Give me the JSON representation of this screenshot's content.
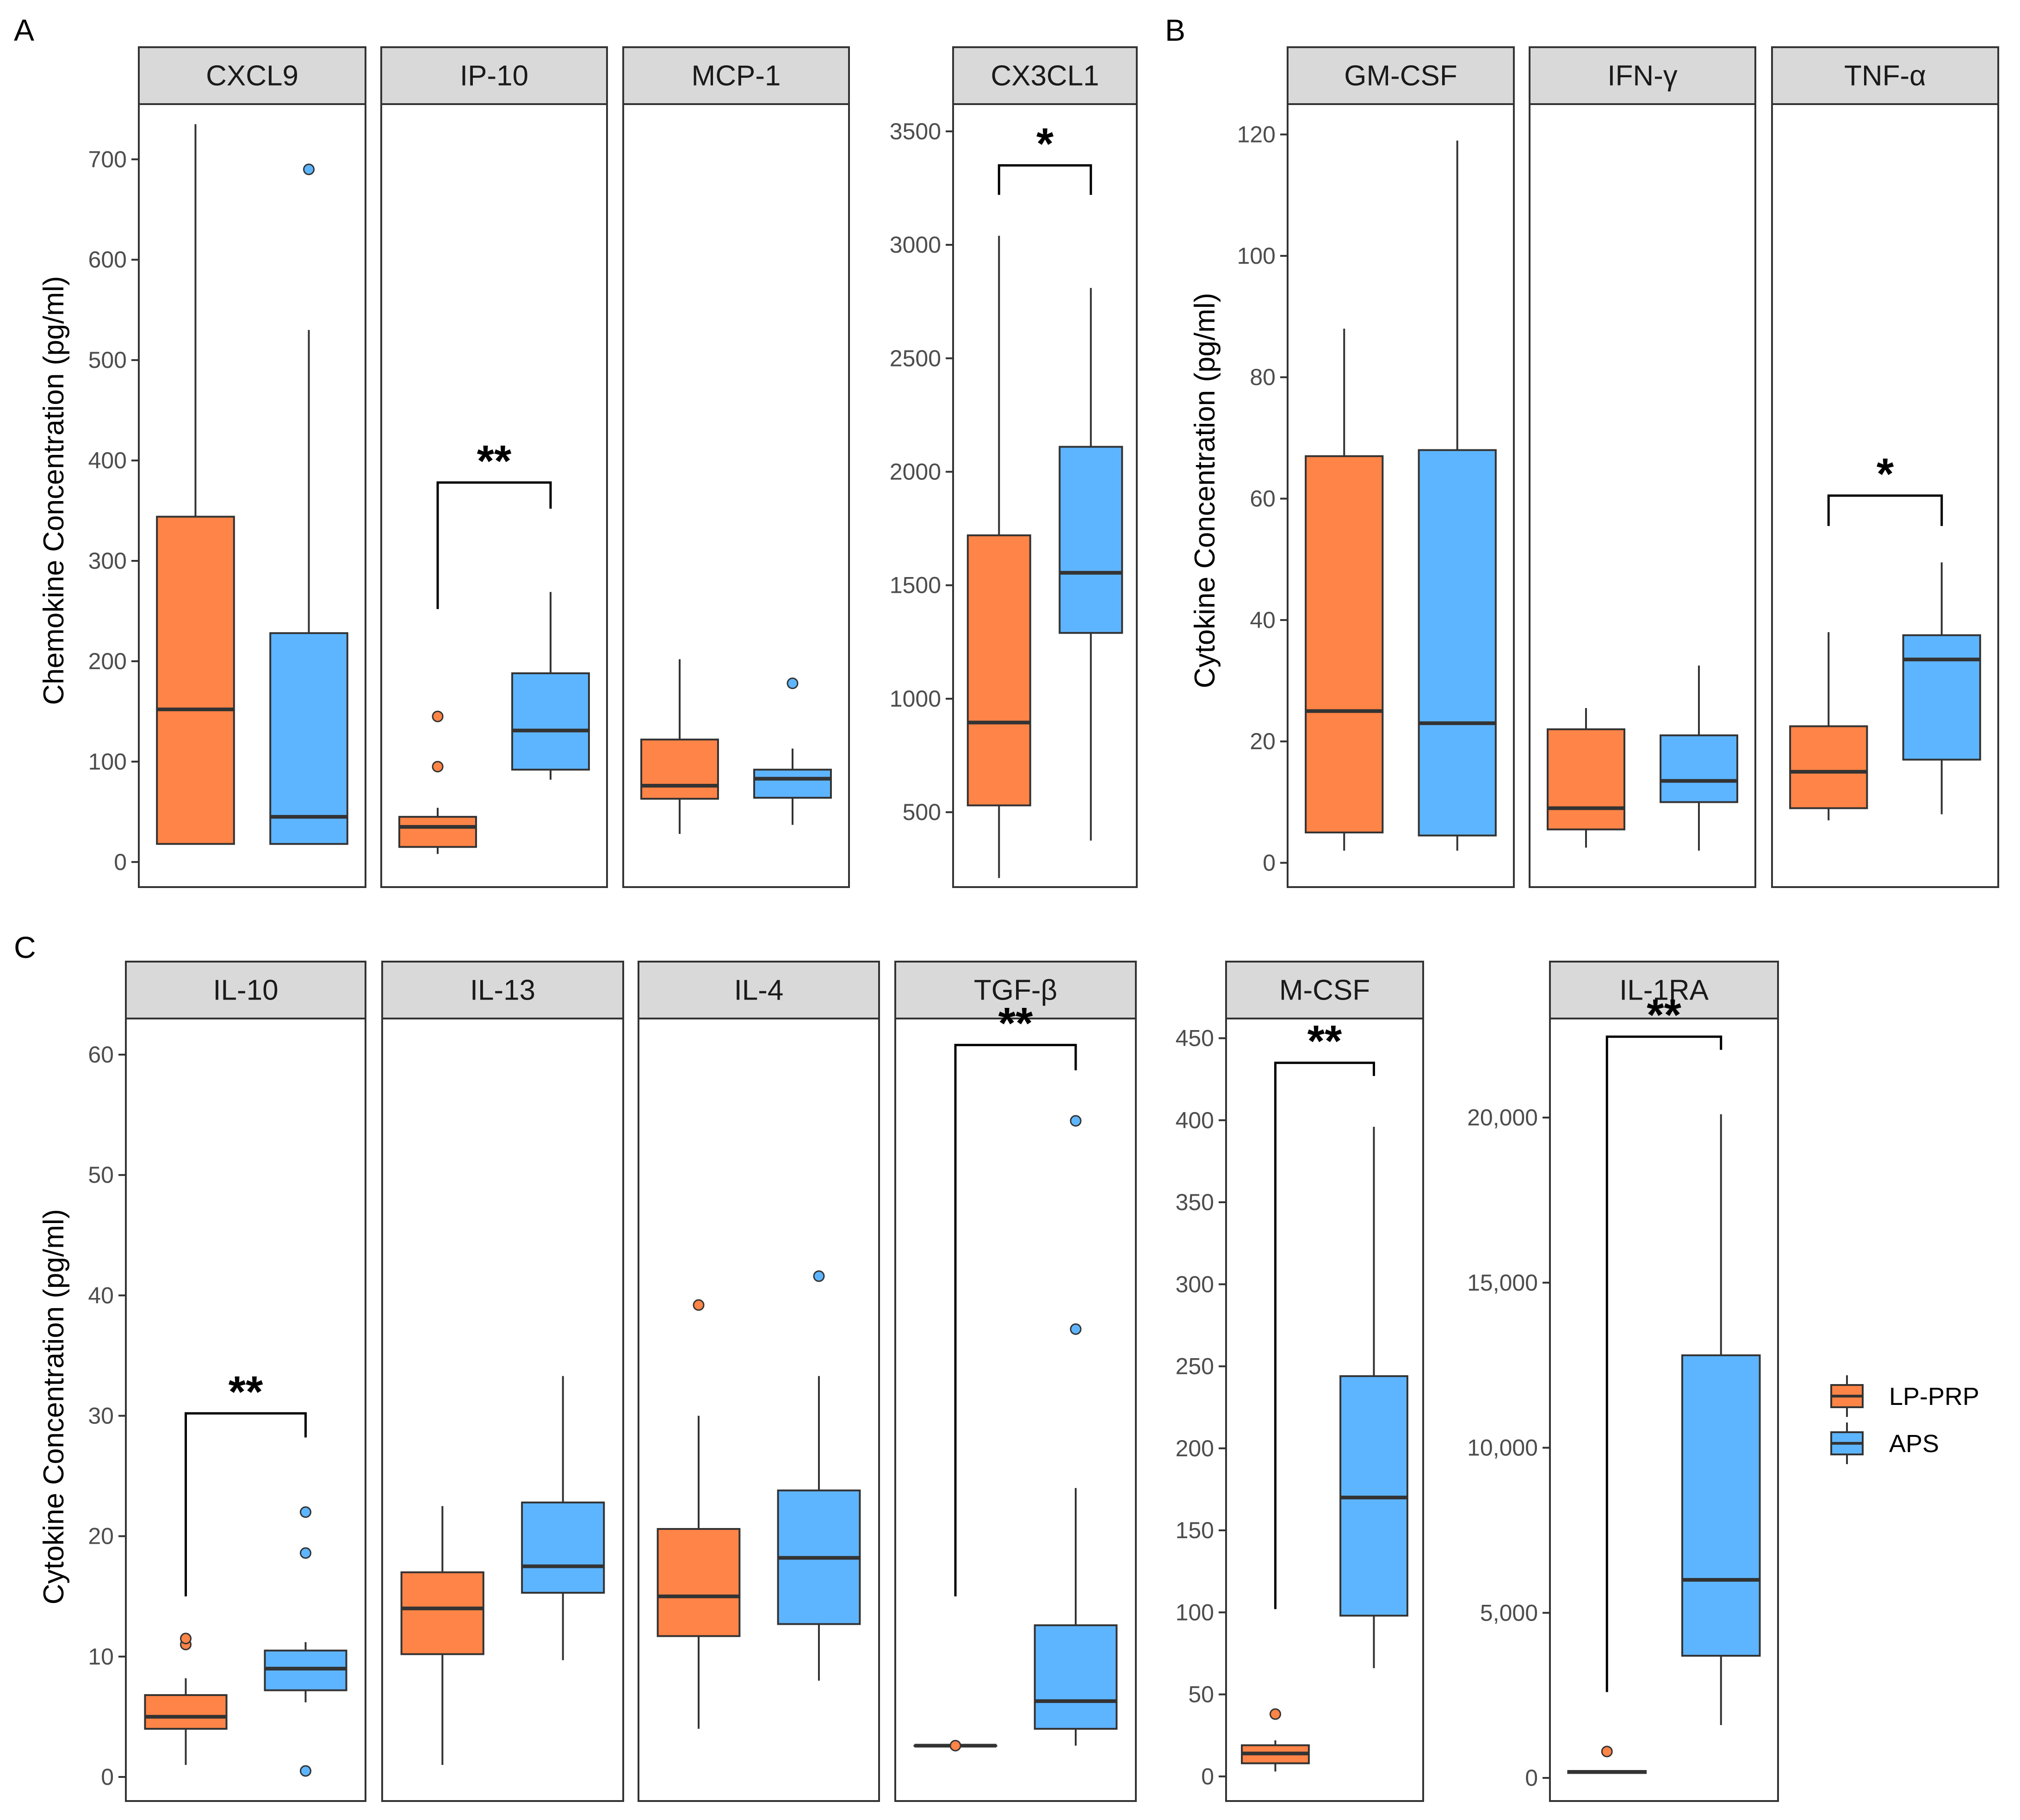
{
  "colors": {
    "lp_prp": "#FF8447",
    "aps": "#5EB5FF",
    "strip_bg": "#D9D9D9",
    "frame": "#333333"
  },
  "legend": {
    "items": [
      {
        "label": "LP-PRP",
        "color": "#FF8447"
      },
      {
        "label": "APS",
        "color": "#5EB5FF"
      }
    ]
  },
  "chart_data": [
    {
      "type": "box",
      "panel": "A",
      "title": "CXCL9",
      "ylabel": "Chemokine Concentration (pg/ml)",
      "ylim": [
        -25,
        755
      ],
      "yticks": [
        0,
        100,
        200,
        300,
        400,
        500,
        600,
        700
      ],
      "tick_labels": [
        "0",
        "100",
        "200",
        "300",
        "400",
        "500",
        "600",
        "700"
      ],
      "series": [
        {
          "name": "LP-PRP",
          "whisker_low": 18,
          "q1": 18,
          "median": 152,
          "q3": 344,
          "whisker_high": 735,
          "outliers": []
        },
        {
          "name": "APS",
          "whisker_low": 18,
          "q1": 18,
          "median": 45,
          "q3": 228,
          "whisker_high": 530,
          "outliers": [
            690
          ]
        }
      ],
      "significance": null
    },
    {
      "type": "box",
      "panel": "A",
      "title": "IP-10",
      "ylabel": "",
      "ylim": [
        -25,
        755
      ],
      "yticks": [],
      "tick_labels": [],
      "series": [
        {
          "name": "LP-PRP",
          "whisker_low": 8,
          "q1": 15,
          "median": 35,
          "q3": 45,
          "whisker_high": 54,
          "outliers": [
            95,
            145
          ]
        },
        {
          "name": "APS",
          "whisker_low": 82,
          "q1": 92,
          "median": 131,
          "q3": 188,
          "whisker_high": 269,
          "outliers": []
        }
      ],
      "significance": {
        "label": "**",
        "left_y": 252,
        "right_y": 352,
        "top_y": 378
      }
    },
    {
      "type": "box",
      "panel": "A",
      "title": "MCP-1",
      "ylabel": "",
      "ylim": [
        -25,
        755
      ],
      "yticks": [],
      "tick_labels": [],
      "series": [
        {
          "name": "LP-PRP",
          "whisker_low": 28,
          "q1": 63,
          "median": 76,
          "q3": 122,
          "whisker_high": 202,
          "outliers": []
        },
        {
          "name": "APS",
          "whisker_low": 37,
          "q1": 64,
          "median": 83,
          "q3": 92,
          "whisker_high": 113,
          "outliers": [
            178
          ]
        }
      ],
      "significance": null
    },
    {
      "type": "box",
      "panel": "A",
      "title": "CX3CL1",
      "ylabel": "",
      "ylim": [
        170,
        3620
      ],
      "yticks": [
        500,
        1000,
        1500,
        2000,
        2500,
        3000,
        3500
      ],
      "tick_labels": [
        "500",
        "1000",
        "1500",
        "2000",
        "2500",
        "3000",
        "3500"
      ],
      "series": [
        {
          "name": "LP-PRP",
          "whisker_low": 210,
          "q1": 530,
          "median": 895,
          "q3": 1720,
          "whisker_high": 3040,
          "outliers": []
        },
        {
          "name": "APS",
          "whisker_low": 375,
          "q1": 1290,
          "median": 1555,
          "q3": 2110,
          "whisker_high": 2810,
          "outliers": []
        }
      ],
      "significance": {
        "label": "*",
        "left_y": 3220,
        "right_y": 3220,
        "top_y": 3350
      }
    },
    {
      "type": "box",
      "panel": "B",
      "title": "GM-CSF",
      "ylabel": "Cytokine Concentration (pg/ml)",
      "ylim": [
        -4,
        125
      ],
      "yticks": [
        0,
        20,
        40,
        60,
        80,
        100,
        120
      ],
      "tick_labels": [
        "0",
        "20",
        "40",
        "60",
        "80",
        "100",
        "120"
      ],
      "series": [
        {
          "name": "LP-PRP",
          "whisker_low": 2,
          "q1": 5,
          "median": 25,
          "q3": 67,
          "whisker_high": 88,
          "outliers": []
        },
        {
          "name": "APS",
          "whisker_low": 2,
          "q1": 4.5,
          "median": 23,
          "q3": 68,
          "whisker_high": 119,
          "outliers": []
        }
      ],
      "significance": null
    },
    {
      "type": "box",
      "panel": "B",
      "title": "IFN-γ",
      "ylabel": "",
      "ylim": [
        -4,
        125
      ],
      "yticks": [],
      "tick_labels": [],
      "series": [
        {
          "name": "LP-PRP",
          "whisker_low": 2.5,
          "q1": 5.5,
          "median": 9,
          "q3": 22,
          "whisker_high": 25.5,
          "outliers": []
        },
        {
          "name": "APS",
          "whisker_low": 2,
          "q1": 10,
          "median": 13.5,
          "q3": 21,
          "whisker_high": 32.5,
          "outliers": []
        }
      ],
      "significance": null
    },
    {
      "type": "box",
      "panel": "B",
      "title": "TNF-α",
      "ylabel": "",
      "ylim": [
        -4,
        125
      ],
      "yticks": [],
      "tick_labels": [],
      "series": [
        {
          "name": "LP-PRP",
          "whisker_low": 7,
          "q1": 9,
          "median": 15,
          "q3": 22.5,
          "whisker_high": 38,
          "outliers": []
        },
        {
          "name": "APS",
          "whisker_low": 8,
          "q1": 17,
          "median": 33.5,
          "q3": 37.5,
          "whisker_high": 49.5,
          "outliers": []
        }
      ],
      "significance": {
        "label": "*",
        "left_y": 55.5,
        "right_y": 55.5,
        "top_y": 60.5
      }
    },
    {
      "type": "box",
      "panel": "C",
      "title": "IL-10",
      "ylabel": "Cytokine Concentration (pg/ml)",
      "ylim": [
        -2,
        63
      ],
      "yticks": [
        0,
        10,
        20,
        30,
        40,
        50,
        60
      ],
      "tick_labels": [
        "0",
        "10",
        "20",
        "30",
        "40",
        "50",
        "60"
      ],
      "series": [
        {
          "name": "LP-PRP",
          "whisker_low": 1,
          "q1": 4,
          "median": 5,
          "q3": 6.8,
          "whisker_high": 8.2,
          "outliers": [
            11,
            11.5
          ]
        },
        {
          "name": "APS",
          "whisker_low": 6.2,
          "q1": 7.2,
          "median": 9,
          "q3": 10.5,
          "whisker_high": 11.2,
          "outliers": [
            0.5,
            18.6,
            22
          ]
        }
      ],
      "significance": {
        "label": "**",
        "left_y": 15,
        "right_y": 28.2,
        "top_y": 30.2
      }
    },
    {
      "type": "box",
      "panel": "C",
      "title": "IL-13",
      "ylabel": "",
      "ylim": [
        -2,
        63
      ],
      "yticks": [],
      "tick_labels": [],
      "series": [
        {
          "name": "LP-PRP",
          "whisker_low": 1,
          "q1": 10.2,
          "median": 14,
          "q3": 17,
          "whisker_high": 22.5,
          "outliers": []
        },
        {
          "name": "APS",
          "whisker_low": 9.7,
          "q1": 15.3,
          "median": 17.5,
          "q3": 22.8,
          "whisker_high": 33.3,
          "outliers": []
        }
      ],
      "significance": null
    },
    {
      "type": "box",
      "panel": "C",
      "title": "IL-4",
      "ylabel": "",
      "ylim": [
        -2,
        63
      ],
      "yticks": [],
      "tick_labels": [],
      "series": [
        {
          "name": "LP-PRP",
          "whisker_low": 4,
          "q1": 11.7,
          "median": 15,
          "q3": 20.6,
          "whisker_high": 30,
          "outliers": [
            39.2
          ]
        },
        {
          "name": "APS",
          "whisker_low": 8,
          "q1": 12.7,
          "median": 18.2,
          "q3": 23.8,
          "whisker_high": 33.3,
          "outliers": [
            41.6
          ]
        }
      ],
      "significance": null
    },
    {
      "type": "box",
      "panel": "C",
      "title": "TGF-β",
      "ylabel": "",
      "ylim": [
        -2,
        63
      ],
      "yticks": [],
      "tick_labels": [],
      "series": [
        {
          "name": "LP-PRP",
          "whisker_low": 2.6,
          "q1": 2.6,
          "median": 2.6,
          "q3": 2.6,
          "whisker_high": 2.6,
          "outliers": [
            2.6
          ]
        },
        {
          "name": "APS",
          "whisker_low": 2.6,
          "q1": 4,
          "median": 6.3,
          "q3": 12.6,
          "whisker_high": 24,
          "outliers": [
            37.2,
            54.5
          ]
        }
      ],
      "significance": {
        "label": "**",
        "left_y": 15,
        "right_y": 58.7,
        "top_y": 60.8
      }
    },
    {
      "type": "box",
      "panel": "C",
      "title": "M-CSF",
      "ylabel": "",
      "ylim": [
        -15,
        462
      ],
      "yticks": [
        0,
        50,
        100,
        150,
        200,
        250,
        300,
        350,
        400,
        450
      ],
      "tick_labels": [
        "0",
        "50",
        "100",
        "150",
        "200",
        "250",
        "300",
        "350",
        "400",
        "450"
      ],
      "series": [
        {
          "name": "LP-PRP",
          "whisker_low": 3,
          "q1": 8,
          "median": 14,
          "q3": 19,
          "whisker_high": 22,
          "outliers": [
            38
          ]
        },
        {
          "name": "APS",
          "whisker_low": 66,
          "q1": 98,
          "median": 170,
          "q3": 244,
          "whisker_high": 396,
          "outliers": []
        }
      ],
      "significance": {
        "label": "**",
        "left_y": 102,
        "right_y": 427,
        "top_y": 435
      }
    },
    {
      "type": "box",
      "panel": "C",
      "title": "IL-1RA",
      "ylabel": "",
      "ylim": [
        -700,
        23000
      ],
      "yticks": [
        0,
        5000,
        10000,
        15000,
        20000
      ],
      "tick_labels": [
        "0",
        "5,000",
        "10,000",
        "15,000",
        "20,000"
      ],
      "series": [
        {
          "name": "LP-PRP",
          "whisker_low": 150,
          "q1": 150,
          "median": 180,
          "q3": 210,
          "whisker_high": 210,
          "outliers": [
            800
          ]
        },
        {
          "name": "APS",
          "whisker_low": 1600,
          "q1": 3700,
          "median": 6000,
          "q3": 12800,
          "whisker_high": 20100,
          "outliers": []
        }
      ],
      "significance": {
        "label": "**",
        "left_y": 2600,
        "right_y": 22050,
        "top_y": 22450
      }
    }
  ],
  "panel_letters": [
    "A",
    "B",
    "C"
  ]
}
